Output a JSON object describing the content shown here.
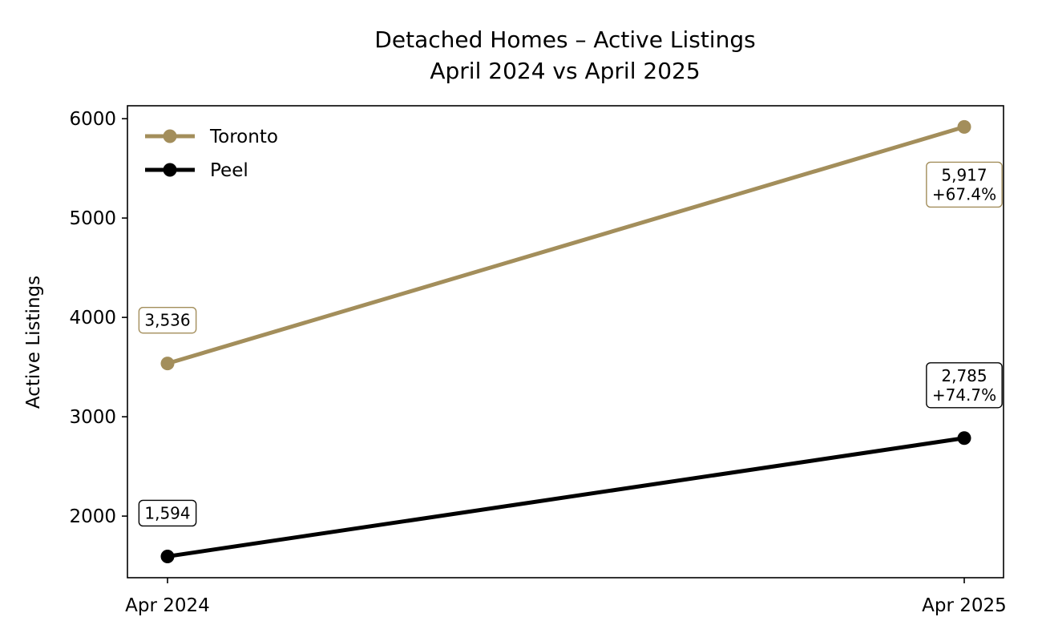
{
  "chart_data": {
    "type": "line",
    "title": "Detached Homes – Active Listings",
    "subtitle": "April 2024 vs April 2025",
    "xlabel": "",
    "ylabel": "Active Listings",
    "categories": [
      "Apr 2024",
      "Apr 2025"
    ],
    "yticks": [
      2000,
      3000,
      4000,
      5000,
      6000
    ],
    "ylim": [
      1380,
      6130
    ],
    "grid": false,
    "legend_position": "top-left",
    "series": [
      {
        "name": "Toronto",
        "color": "#A38E5B",
        "values": [
          3536,
          5917
        ],
        "annotations": [
          {
            "lines": [
              "3,536"
            ],
            "placement": "above"
          },
          {
            "lines": [
              "5,917",
              "+67.4%"
            ],
            "placement": "below"
          }
        ]
      },
      {
        "name": "Peel",
        "color": "#000000",
        "values": [
          1594,
          2785
        ],
        "annotations": [
          {
            "lines": [
              "1,594"
            ],
            "placement": "above"
          },
          {
            "lines": [
              "2,785",
              "+74.7%"
            ],
            "placement": "above"
          }
        ]
      }
    ]
  }
}
